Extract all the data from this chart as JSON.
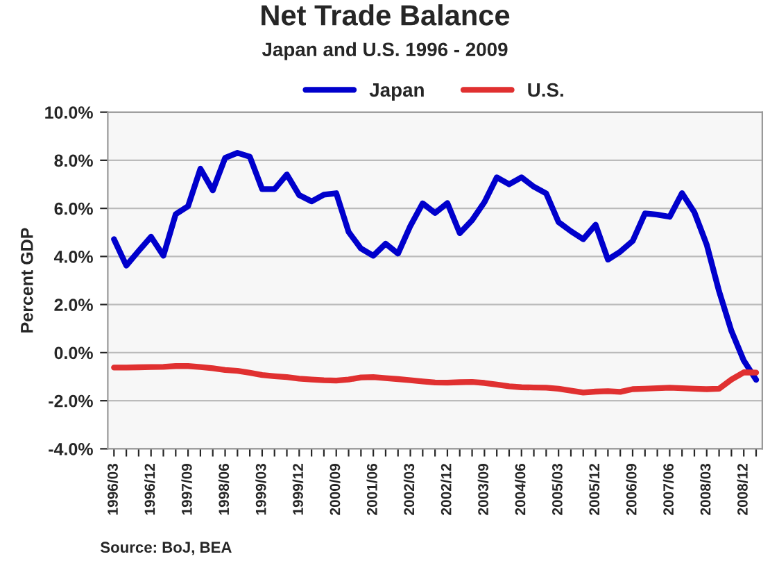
{
  "chart_data": {
    "type": "line",
    "title": "Net Trade Balance",
    "subtitle": "Japan and U.S. 1996 - 2009",
    "ylabel": "Percent GDP",
    "categories": [
      "1996/03",
      null,
      null,
      "1996/12",
      null,
      null,
      "1997/09",
      null,
      null,
      "1998/06",
      null,
      null,
      "1999/03",
      null,
      null,
      "1999/12",
      null,
      null,
      "2000/09",
      null,
      null,
      "2001/06",
      null,
      null,
      "2002/03",
      null,
      null,
      "2002/12",
      null,
      null,
      "2003/09",
      null,
      null,
      "2004/06",
      null,
      null,
      "2005/03",
      null,
      null,
      "2005/12",
      null,
      null,
      "2006/09",
      null,
      null,
      "2007/06",
      null,
      null,
      "2008/03",
      null,
      null,
      "2008/12",
      null
    ],
    "series": [
      {
        "name": "Japan",
        "color": "#0000cc",
        "values": [
          4.72,
          3.62,
          4.23,
          4.82,
          4.03,
          5.76,
          6.09,
          7.65,
          6.75,
          8.1,
          8.31,
          8.15,
          6.8,
          6.8,
          7.41,
          6.55,
          6.29,
          6.57,
          6.63,
          5.02,
          4.33,
          4.03,
          4.53,
          4.12,
          5.27,
          6.21,
          5.81,
          6.22,
          4.97,
          5.51,
          6.26,
          7.29,
          7.0,
          7.29,
          6.9,
          6.62,
          5.43,
          5.05,
          4.72,
          5.32,
          3.87,
          4.2,
          4.64,
          5.79,
          5.74,
          5.65,
          6.63,
          5.84,
          4.49,
          2.55,
          0.9,
          -0.33,
          -1.13
        ]
      },
      {
        "name": "U.S.",
        "color": "#e03030",
        "values": [
          -0.62,
          -0.62,
          -0.61,
          -0.6,
          -0.59,
          -0.56,
          -0.56,
          -0.6,
          -0.65,
          -0.72,
          -0.76,
          -0.84,
          -0.93,
          -0.98,
          -1.02,
          -1.08,
          -1.12,
          -1.15,
          -1.16,
          -1.12,
          -1.03,
          -1.02,
          -1.06,
          -1.1,
          -1.15,
          -1.2,
          -1.24,
          -1.25,
          -1.23,
          -1.22,
          -1.26,
          -1.33,
          -1.4,
          -1.44,
          -1.45,
          -1.46,
          -1.5,
          -1.58,
          -1.66,
          -1.62,
          -1.6,
          -1.63,
          -1.52,
          -1.5,
          -1.48,
          -1.46,
          -1.48,
          -1.5,
          -1.52,
          -1.5,
          -1.12,
          -0.82,
          -0.83
        ]
      }
    ],
    "ylim": [
      -4,
      10
    ],
    "yticks": [
      {
        "value": -4,
        "label": "-4.0%"
      },
      {
        "value": -2,
        "label": "-2.0%"
      },
      {
        "value": 0,
        "label": "0.0%"
      },
      {
        "value": 2,
        "label": "2.0%"
      },
      {
        "value": 4,
        "label": "4.0%"
      },
      {
        "value": 6,
        "label": "6.0%"
      },
      {
        "value": 8,
        "label": "8.0%"
      },
      {
        "value": 10,
        "label": "10.0%"
      }
    ],
    "grid": "y",
    "legend": "top",
    "marker": "none",
    "line_style": "solid",
    "annotations": [
      "Source: BoJ, BEA"
    ]
  }
}
